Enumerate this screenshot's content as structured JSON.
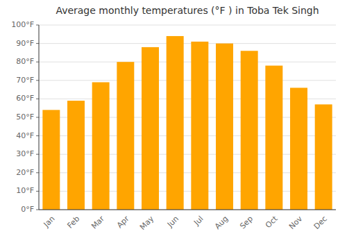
{
  "chart_data": {
    "type": "bar",
    "title": "Average monthly temperatures (°F ) in Toba Tek Singh",
    "categories": [
      "Jan",
      "Feb",
      "Mar",
      "Apr",
      "May",
      "Jun",
      "Jul",
      "Aug",
      "Sep",
      "Oct",
      "Nov",
      "Dec"
    ],
    "values": [
      54,
      59,
      69,
      80,
      88,
      94,
      91,
      90,
      86,
      78,
      66,
      57
    ],
    "color": "#FFA500",
    "ylim": [
      0,
      100
    ],
    "yticks": [
      {
        "value": 0,
        "label": "0°F"
      },
      {
        "value": 10,
        "label": "10°F"
      },
      {
        "value": 20,
        "label": "20°F"
      },
      {
        "value": 30,
        "label": "30°F"
      },
      {
        "value": 40,
        "label": "40°F"
      },
      {
        "value": 50,
        "label": "50°F"
      },
      {
        "value": 60,
        "label": "60°F"
      },
      {
        "value": 70,
        "label": "70°F"
      },
      {
        "value": 80,
        "label": "80°F"
      },
      {
        "value": 90,
        "label": "90°F"
      },
      {
        "value": 100,
        "label": "100°F"
      }
    ],
    "grid": true
  }
}
